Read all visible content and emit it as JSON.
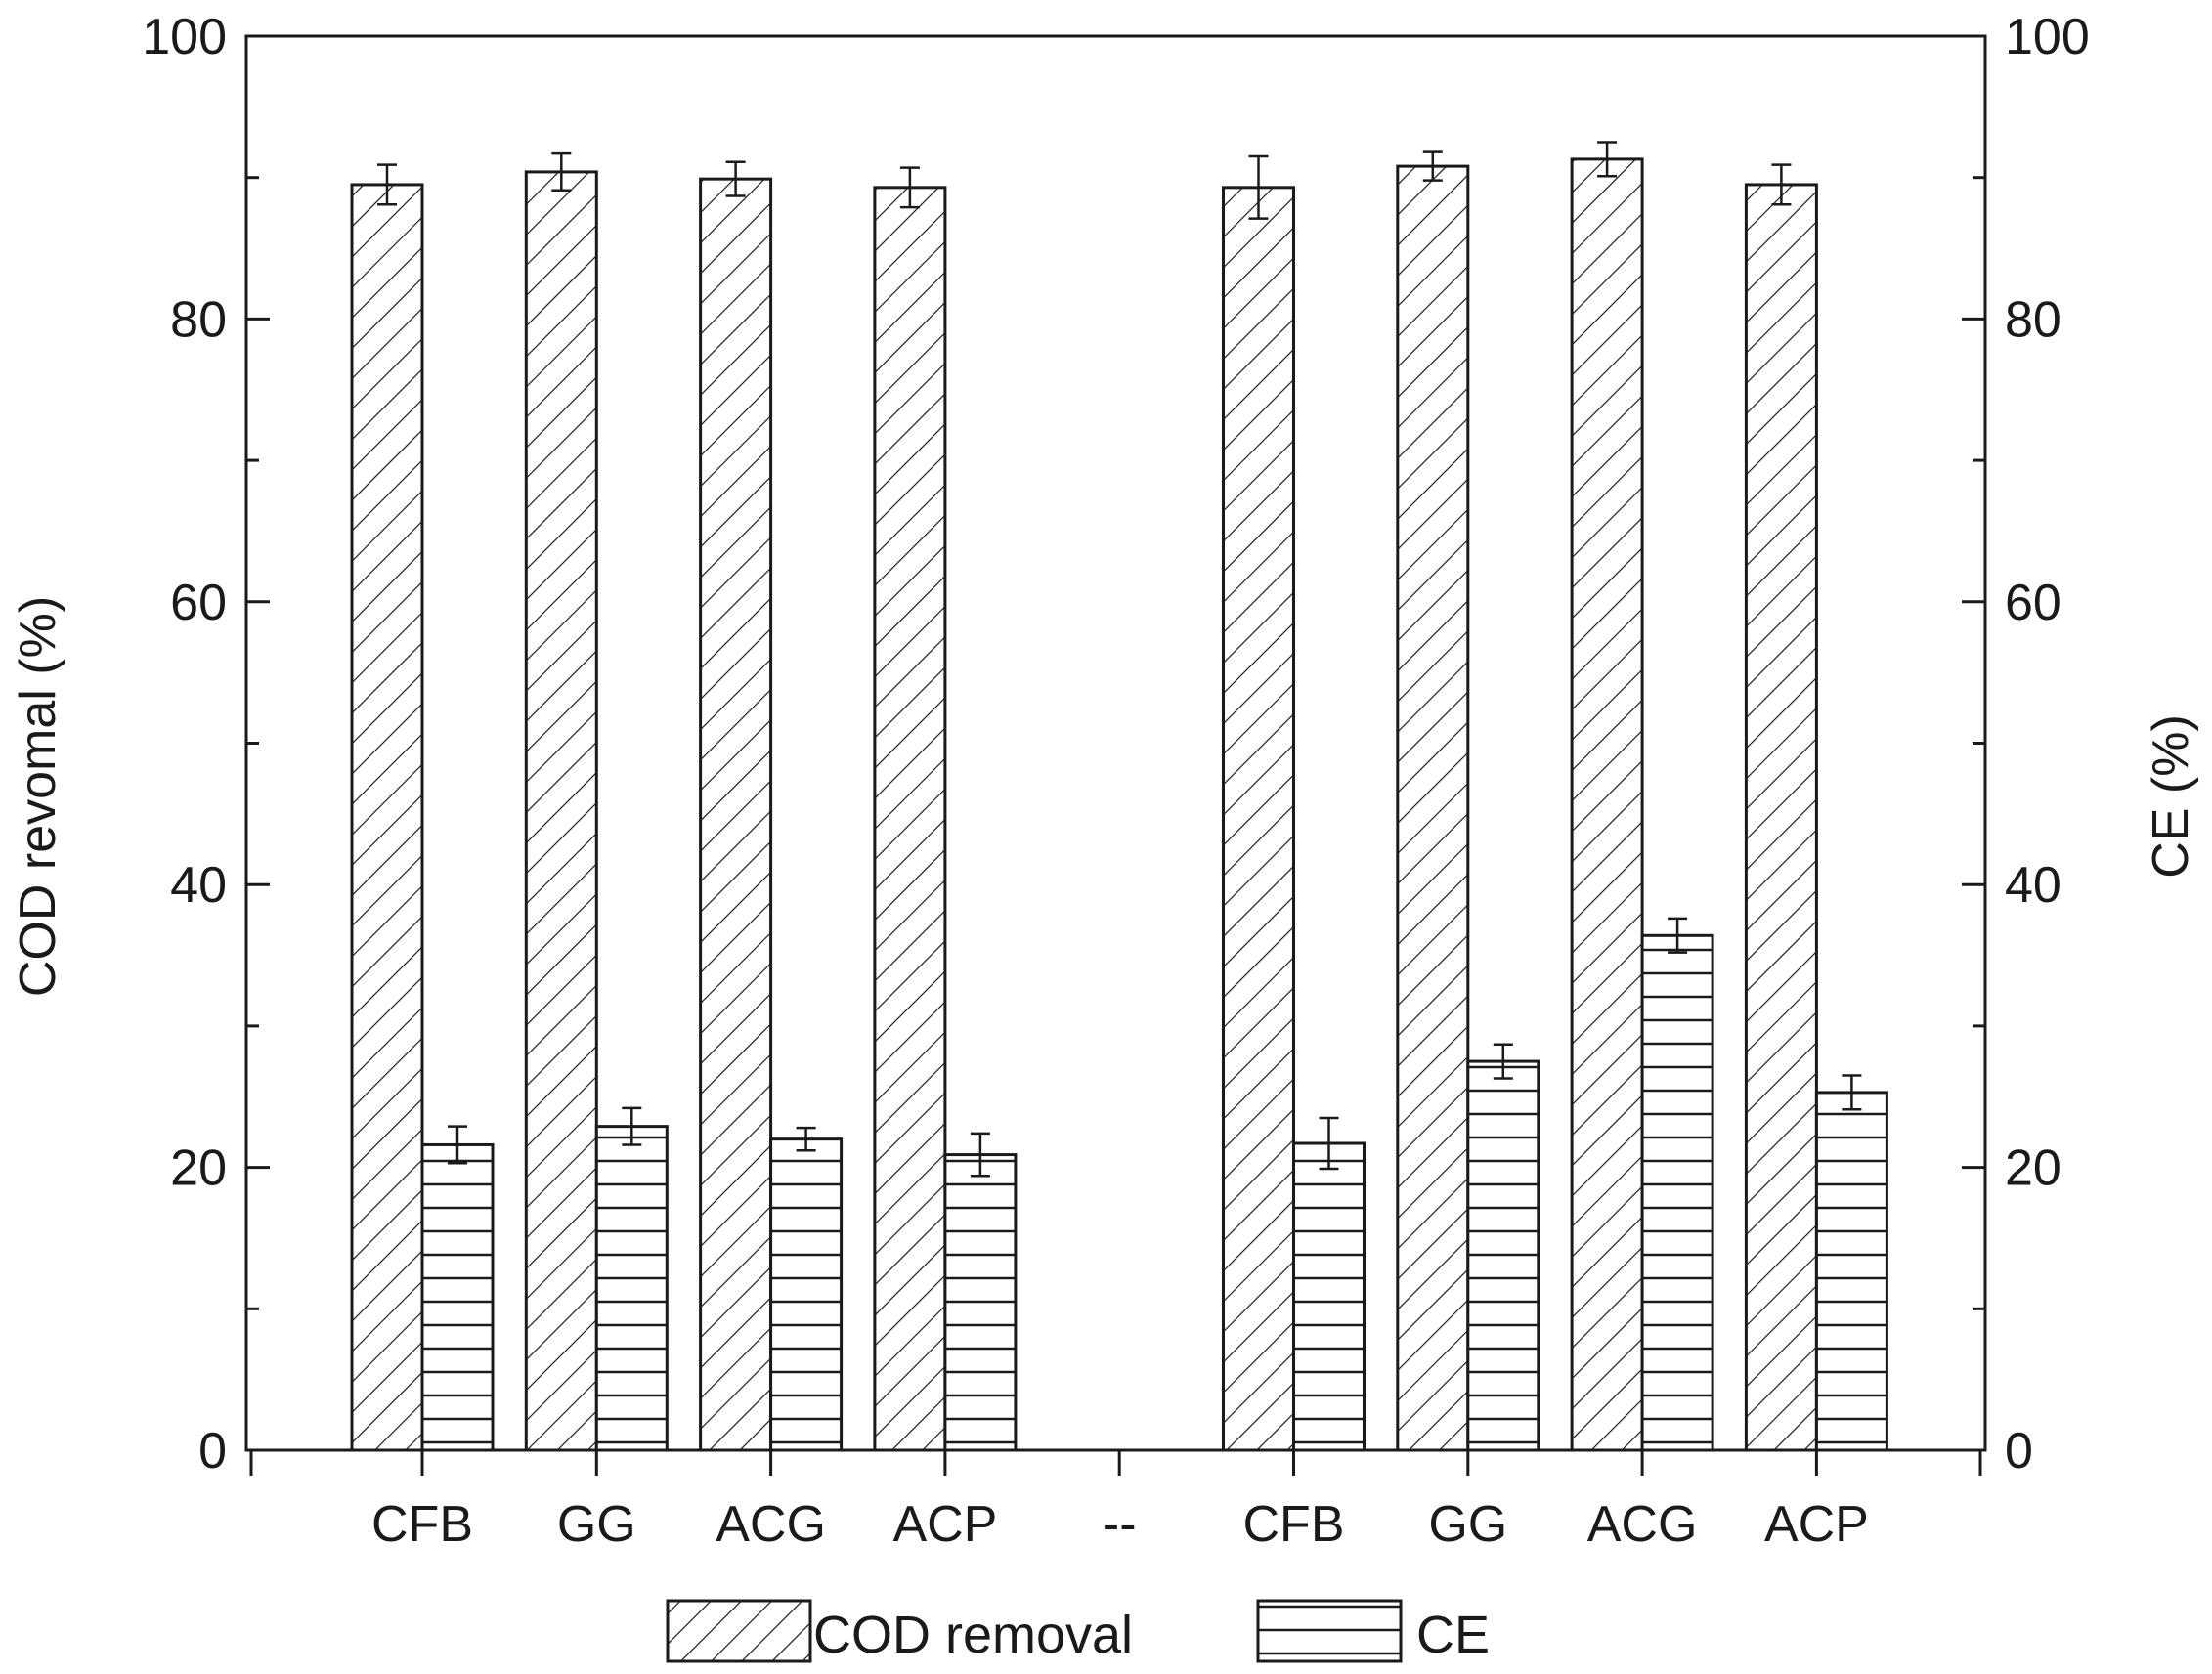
{
  "chart_data": {
    "type": "bar",
    "categories": [
      "CFB",
      "GG",
      "ACG",
      "ACP",
      "--",
      "CFB",
      "GG",
      "ACG",
      "ACP"
    ],
    "series": [
      {
        "name": "COD removal",
        "pattern": "diagonal-hatch",
        "axis": "left",
        "values": [
          89.5,
          90.4,
          89.9,
          89.3,
          null,
          89.3,
          90.8,
          91.3,
          89.5
        ],
        "errors": [
          1.4,
          1.3,
          1.2,
          1.4,
          null,
          2.2,
          1.0,
          1.2,
          1.4
        ]
      },
      {
        "name": "CE",
        "pattern": "horizontal-hatch",
        "axis": "right",
        "values": [
          21.6,
          22.9,
          22.0,
          20.9,
          null,
          21.7,
          27.5,
          36.4,
          25.3
        ],
        "errors": [
          1.3,
          1.3,
          0.8,
          1.5,
          null,
          1.8,
          1.2,
          1.2,
          1.2
        ]
      }
    ],
    "ylabel": "COD revomal (%)",
    "y2label": "CE (%)",
    "ylim": [
      0,
      100
    ],
    "y2lim": [
      0,
      100
    ],
    "yticks": [
      0,
      20,
      40,
      60,
      80,
      100
    ],
    "y2ticks": [
      0,
      20,
      40,
      60,
      80,
      100
    ],
    "legend": [
      "COD removal",
      "CE"
    ],
    "legend_position": "bottom-center",
    "grid": false
  },
  "colors": {
    "axis": "#1a1a1a",
    "bar_fill": "#ffffff",
    "hatch": "#1a1a1a"
  }
}
